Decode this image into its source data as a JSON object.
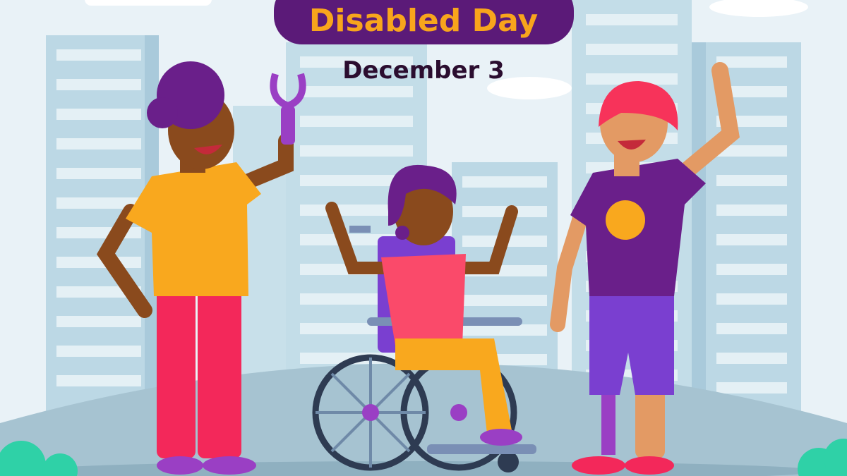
{
  "banner": {
    "title": "Disabled Day",
    "date": "December 3"
  },
  "colors": {
    "sky": "#e9f2f7",
    "building": "#bcd8e5",
    "banner_bg": "#5b1a78",
    "title_text": "#f8a51c",
    "date_text": "#2b0d2f",
    "ground": "#a6c3d1"
  },
  "people": [
    {
      "description_name": "man-with-prosthetic-hand"
    },
    {
      "description_name": "woman-in-wheelchair"
    },
    {
      "description_name": "person-with-prosthetic-leg"
    }
  ]
}
